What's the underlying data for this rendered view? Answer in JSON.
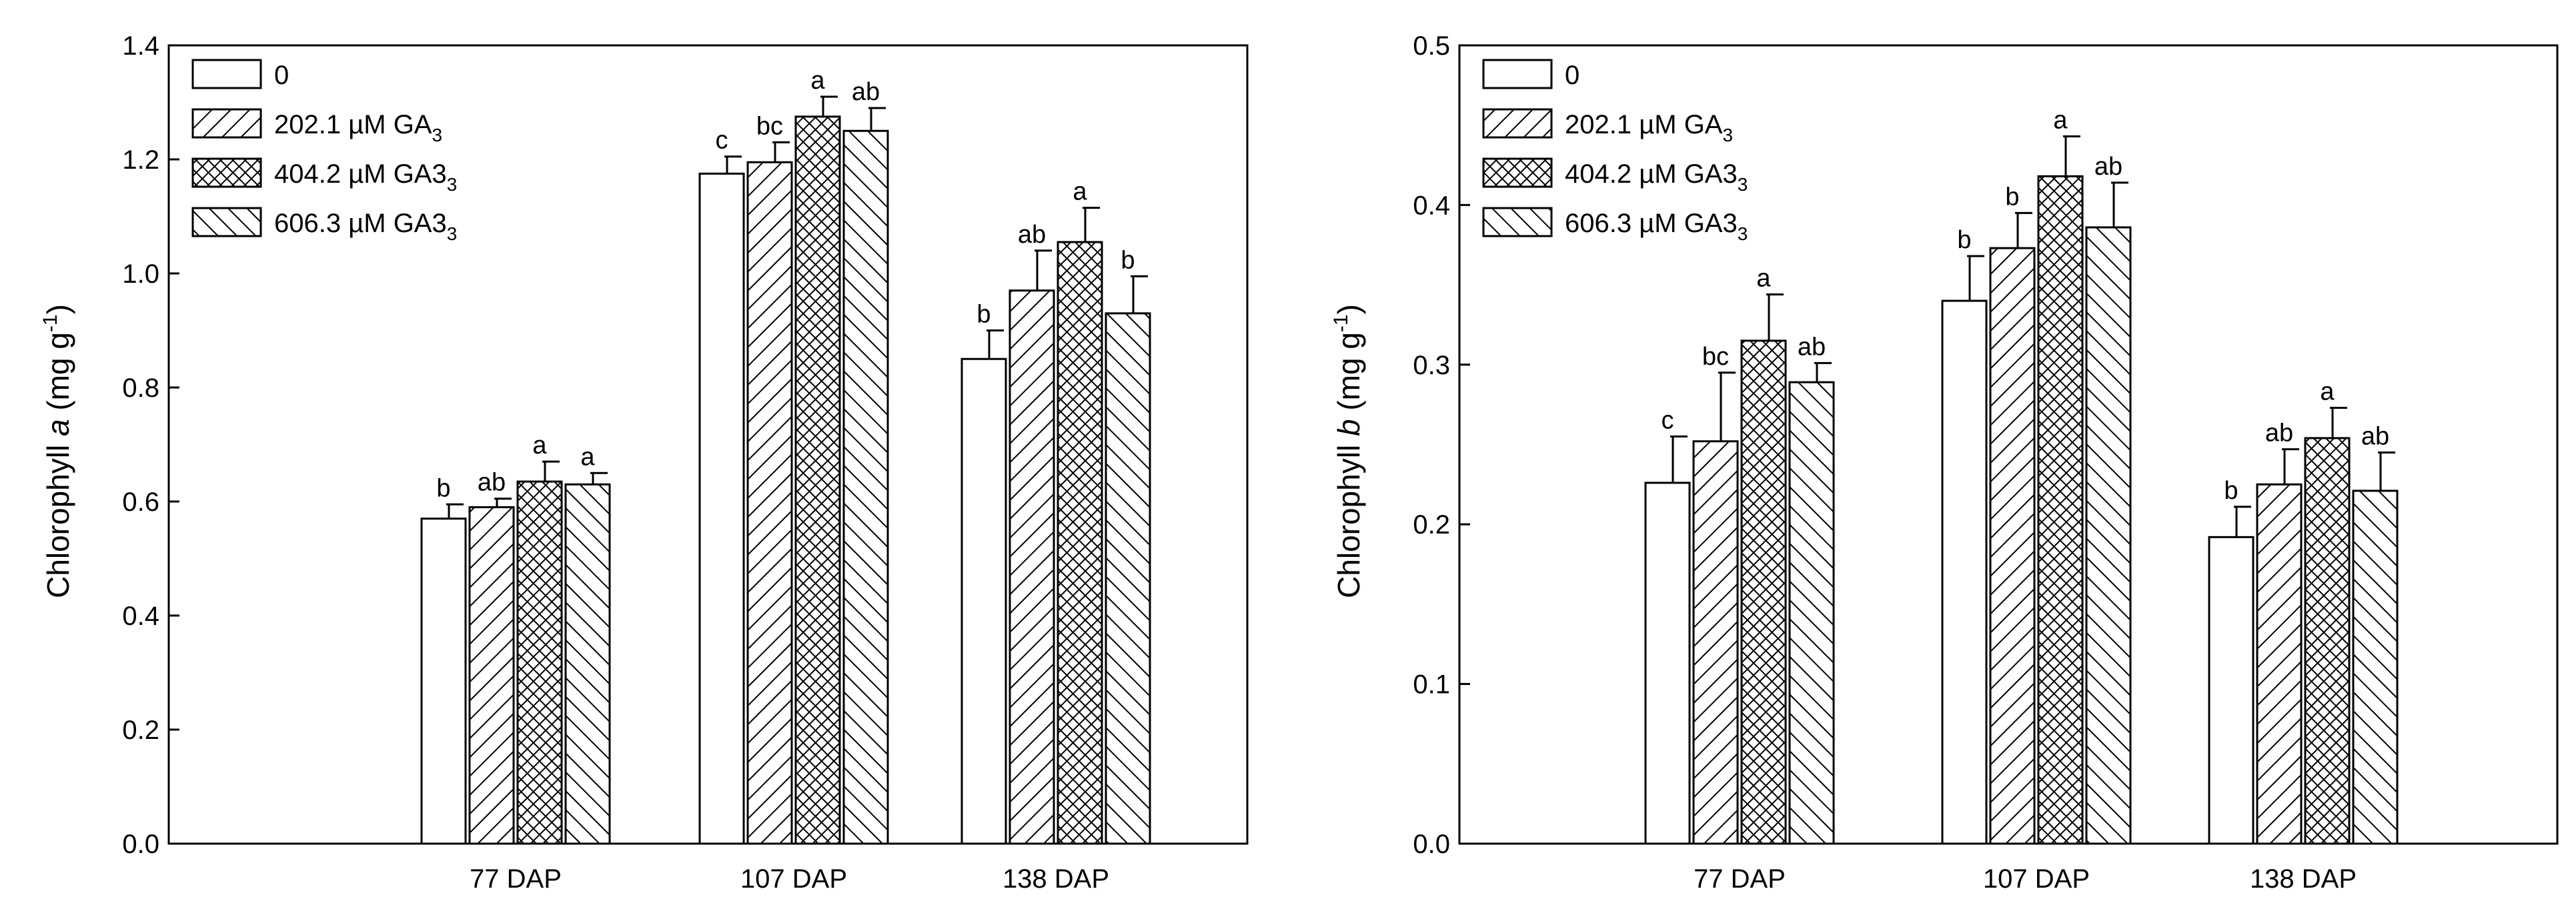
{
  "chart_data": [
    {
      "type": "bar",
      "ylabel_parts": {
        "pre": "Chlorophyll ",
        "ital": "a",
        "post": " (mg g",
        "sup": "-1",
        "close": ")"
      },
      "ylim": [
        0,
        1.4
      ],
      "yticks": [
        "0.0",
        "0.2",
        "0.4",
        "0.6",
        "0.8",
        "1.0",
        "1.2",
        "1.4"
      ],
      "categories": [
        "77 DAP",
        "107 DAP",
        "138 DAP"
      ],
      "series": [
        {
          "name": "0",
          "values": [
            0.57,
            1.175,
            0.85
          ],
          "errors": [
            0.025,
            0.03,
            0.05
          ],
          "labels": [
            "b",
            "c",
            "b"
          ]
        },
        {
          "name": "202.1 µM GA3",
          "values": [
            0.59,
            1.195,
            0.97
          ],
          "errors": [
            0.015,
            0.035,
            0.07
          ],
          "labels": [
            "ab",
            "bc",
            "ab"
          ]
        },
        {
          "name": "404.2 µM GA33",
          "values": [
            0.635,
            1.275,
            1.055
          ],
          "errors": [
            0.035,
            0.035,
            0.06
          ],
          "labels": [
            "a",
            "a",
            "a"
          ]
        },
        {
          "name": "606.3 µM GA33",
          "values": [
            0.63,
            1.25,
            0.93
          ],
          "errors": [
            0.02,
            0.04,
            0.065
          ],
          "labels": [
            "a",
            "ab",
            "b"
          ]
        }
      ]
    },
    {
      "type": "bar",
      "ylabel_parts": {
        "pre": "Chlorophyll ",
        "ital": "b",
        "post": " (mg g",
        "sup": "-1",
        "close": ")"
      },
      "ylim": [
        0,
        0.5
      ],
      "yticks": [
        "0.0",
        "0.1",
        "0.2",
        "0.3",
        "0.4",
        "0.5"
      ],
      "categories": [
        "77 DAP",
        "107 DAP",
        "138 DAP"
      ],
      "series": [
        {
          "name": "0",
          "values": [
            0.226,
            0.34,
            0.192
          ],
          "errors": [
            0.029,
            0.028,
            0.019
          ],
          "labels": [
            "c",
            "b",
            "b"
          ]
        },
        {
          "name": "202.1 µM GA3",
          "values": [
            0.252,
            0.373,
            0.225
          ],
          "errors": [
            0.043,
            0.022,
            0.022
          ],
          "labels": [
            "bc",
            "b",
            "ab"
          ]
        },
        {
          "name": "404.2 µM GA33",
          "values": [
            0.315,
            0.418,
            0.254
          ],
          "errors": [
            0.029,
            0.025,
            0.019
          ],
          "labels": [
            "a",
            "a",
            "a"
          ]
        },
        {
          "name": "606.3 µM GA33",
          "values": [
            0.289,
            0.386,
            0.221
          ],
          "errors": [
            0.012,
            0.028,
            0.024
          ],
          "labels": [
            "ab",
            "ab",
            "ab"
          ]
        }
      ]
    }
  ],
  "legend": [
    {
      "main": "0",
      "sub": ""
    },
    {
      "main": "202.1 µM GA",
      "sub": "3"
    },
    {
      "main": "404.2 µM GA3",
      "sub": "3"
    },
    {
      "main": "606.3 µM GA3",
      "sub": "3"
    }
  ],
  "patterns": [
    "none",
    "forward-hatch",
    "crosshatch",
    "back-hatch"
  ]
}
